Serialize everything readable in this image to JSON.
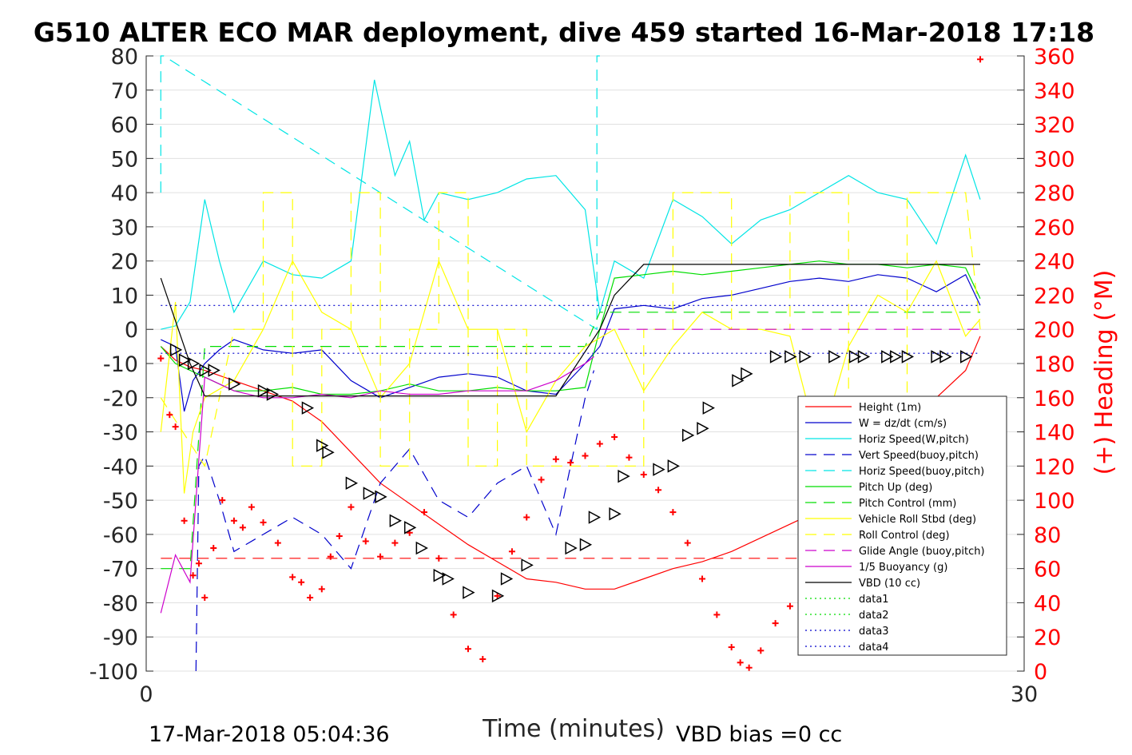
{
  "chart_data": {
    "type": "line",
    "title": "G510 ALTER ECO MAR deployment, dive 459 started 16-Mar-2018 17:18",
    "xlabel": "Time (minutes)",
    "ylabel": "",
    "y2label": "(+) Heading (°M)",
    "xlim": [
      0,
      30
    ],
    "ylim": [
      -100,
      80
    ],
    "y2lim": [
      0,
      360
    ],
    "x_ticks": [
      "0",
      "30"
    ],
    "y_ticks": [
      "80",
      "70",
      "60",
      "50",
      "40",
      "30",
      "20",
      "10",
      "0",
      "-10",
      "-20",
      "-30",
      "-40",
      "-50",
      "-60",
      "-70",
      "-80",
      "-90",
      "-100"
    ],
    "y2_ticks": [
      "360",
      "340",
      "320",
      "300",
      "280",
      "260",
      "240",
      "220",
      "200",
      "180",
      "160",
      "140",
      "120",
      "100",
      "80",
      "60",
      "40",
      "20",
      "0"
    ],
    "grid": true,
    "legend_position": "bottom-right",
    "footer_left": "17-Mar-2018 05:04:36",
    "footer_right": "VBD bias =0 cc",
    "colors": {
      "height": "#ff0000",
      "w": "#0000cc",
      "horiz_speed": "#00e5e5",
      "pitch": "#00dd00",
      "roll": "#ffff00",
      "glide": "#cc00cc",
      "vbd": "#000000",
      "heading": "#ff0000"
    },
    "series": [
      {
        "name": "Height (1m)",
        "style": "solid",
        "color": "#ff0000",
        "x": [
          0.5,
          1,
          1.5,
          2,
          3,
          4,
          5,
          6,
          7,
          8,
          9,
          10,
          11,
          12,
          13,
          14,
          15,
          16,
          17,
          18,
          19,
          20,
          21,
          22,
          23,
          24,
          25,
          26,
          27,
          28,
          28.5
        ],
        "y": [
          -5,
          -9,
          -11,
          -12,
          -15,
          -18,
          -21,
          -27,
          -36,
          -45,
          -51,
          -57,
          -63,
          -68,
          -73,
          -74,
          -76,
          -76,
          -73,
          -70,
          -68,
          -65,
          -61,
          -57,
          -53,
          -45,
          -37,
          -28,
          -20,
          -12,
          -2
        ]
      },
      {
        "name": "W = dz/dt (cm/s)",
        "style": "solid",
        "color": "#0000cc",
        "x": [
          0.5,
          1,
          1.3,
          1.6,
          2,
          2.5,
          3,
          4,
          5,
          6,
          7,
          8,
          9,
          10,
          11,
          12,
          13,
          14,
          15,
          15.5,
          16,
          17,
          18,
          19,
          20,
          21,
          22,
          23,
          24,
          25,
          26,
          27,
          28,
          28.5
        ],
        "y": [
          -3,
          -5,
          -24,
          -15,
          -10,
          -6,
          -3,
          -6,
          -7,
          -6,
          -15,
          -20,
          -17,
          -14,
          -13,
          -14,
          -18,
          -19,
          -10,
          -5,
          6,
          7,
          6,
          9,
          10,
          12,
          14,
          15,
          14,
          16,
          15,
          11,
          16,
          7
        ]
      },
      {
        "name": "Horiz Speed(W,pitch)",
        "style": "solid",
        "color": "#00e5e5",
        "x": [
          0.5,
          1,
          1.5,
          2,
          2.5,
          3,
          4,
          5,
          6,
          7,
          7.8,
          8.5,
          9,
          9.5,
          10,
          11,
          12,
          13,
          14,
          15,
          15.5,
          16,
          17,
          18,
          19,
          20,
          21,
          22,
          23,
          24,
          25,
          26,
          27,
          28,
          28.5
        ],
        "y": [
          0,
          1,
          8,
          38,
          20,
          5,
          20,
          16,
          15,
          20,
          73,
          45,
          55,
          32,
          40,
          38,
          40,
          44,
          45,
          35,
          5,
          20,
          15,
          38,
          33,
          25,
          32,
          35,
          40,
          45,
          40,
          38,
          25,
          51,
          38
        ]
      },
      {
        "name": "Vert Speed(buoy,pitch)",
        "style": "dashed",
        "color": "#0000cc",
        "x": [
          1.7,
          1.8,
          2,
          2.5,
          3,
          4,
          5,
          6,
          7,
          8,
          9,
          10,
          11,
          12,
          13,
          14,
          15,
          15.3
        ],
        "y": [
          -100,
          -40,
          -37,
          -50,
          -65,
          -60,
          -55,
          -60,
          -70,
          -45,
          -35,
          -50,
          -55,
          -45,
          -40,
          -60,
          -20,
          -12
        ]
      },
      {
        "name": "Horiz Speed(buoy,pitch)",
        "style": "dashed",
        "color": "#00e5e5",
        "x": [
          0.5,
          0.5,
          0.6,
          15.4,
          15.4,
          15.5
        ],
        "y": [
          40,
          80,
          80,
          0,
          80,
          80
        ]
      },
      {
        "name": "Pitch Up (deg)",
        "style": "solid",
        "color": "#00dd00",
        "x": [
          0.5,
          1,
          2,
          3,
          4,
          5,
          6,
          7,
          8,
          9,
          10,
          11,
          12,
          13,
          14,
          15,
          15.5,
          16,
          17,
          18,
          19,
          20,
          21,
          22,
          23,
          24,
          25,
          26,
          27,
          28,
          28.5
        ],
        "y": [
          -5,
          -10,
          -14,
          -18,
          -18,
          -17,
          -19,
          -19,
          -18,
          -16,
          -18,
          -18,
          -17,
          -18,
          -18,
          -17,
          0,
          15,
          16,
          17,
          16,
          17,
          18,
          19,
          20,
          19,
          19,
          18,
          19,
          18,
          9
        ]
      },
      {
        "name": "Pitch Control (mm)",
        "style": "dashed",
        "color": "#00dd00",
        "x": [
          0.5,
          1.5,
          2,
          15,
          15.5,
          28.5
        ],
        "y": [
          -70,
          -70,
          -5,
          -5,
          5,
          5
        ]
      },
      {
        "name": "Vehicle Roll Stbd (deg)",
        "style": "solid",
        "color": "#ffff00",
        "x": [
          0.5,
          1,
          1.3,
          1.6,
          2,
          3,
          4,
          5,
          6,
          7,
          8,
          9,
          10,
          11,
          12,
          13,
          14,
          15,
          16,
          17,
          18,
          19,
          20,
          21,
          22,
          23,
          24,
          25,
          26,
          27,
          28,
          28.5
        ],
        "y": [
          -30,
          8,
          -48,
          -30,
          -20,
          -15,
          0,
          20,
          5,
          0,
          -20,
          -10,
          20,
          0,
          0,
          -30,
          -15,
          -5,
          0,
          -18,
          -5,
          5,
          0,
          0,
          -2,
          -35,
          -5,
          10,
          5,
          20,
          -2,
          3
        ]
      },
      {
        "name": "Roll Control (deg)",
        "style": "dashed",
        "color": "#ffff00",
        "x": [
          0.5,
          2,
          3,
          4,
          4,
          5,
          5,
          6,
          6,
          7,
          7,
          8,
          8,
          9,
          9,
          10,
          10,
          11,
          11,
          12,
          12,
          13,
          13,
          17,
          17,
          18,
          18,
          20,
          20,
          22,
          22,
          24,
          24,
          26,
          26,
          28,
          28.5
        ],
        "y": [
          -20,
          -40,
          0,
          0,
          40,
          40,
          -40,
          -40,
          0,
          0,
          40,
          40,
          -40,
          -40,
          0,
          0,
          40,
          40,
          -40,
          -40,
          0,
          0,
          -40,
          -40,
          0,
          0,
          40,
          40,
          0,
          0,
          40,
          40,
          -40,
          -40,
          40,
          40,
          0
        ]
      },
      {
        "name": "Glide Angle (buoy,pitch)",
        "style": "dashed",
        "color": "#cc00cc",
        "x": [
          15.5,
          28.5
        ],
        "y": [
          0,
          0
        ]
      },
      {
        "name": "1/5 Buoyancy (g)",
        "style": "solid",
        "color": "#cc00cc",
        "x": [
          0.5,
          1,
          1.5,
          2,
          3,
          4,
          5,
          6,
          7,
          8,
          9,
          10,
          11,
          12,
          13,
          14,
          15,
          15.3
        ],
        "y": [
          -83,
          -66,
          -74,
          -14,
          -18,
          -20,
          -20,
          -19,
          -20,
          -18,
          -19,
          -19,
          -18,
          -18,
          -18,
          -15,
          -10,
          -8
        ]
      },
      {
        "name": "VBD (10 cc)",
        "style": "solid",
        "color": "#000000",
        "x": [
          0.5,
          1.5,
          2,
          13,
          14,
          15.5,
          16,
          17,
          18,
          20,
          22,
          24,
          26,
          28.5
        ],
        "y": [
          15,
          -10,
          -19.5,
          -19.5,
          -19.5,
          0,
          10,
          19,
          19,
          19,
          19,
          19,
          19,
          19
        ]
      },
      {
        "name": "data1",
        "style": "dotted",
        "color": "#00dd00",
        "x": [],
        "y": []
      },
      {
        "name": "data2",
        "style": "dotted",
        "color": "#00dd00",
        "x": [],
        "y": []
      },
      {
        "name": "data3",
        "style": "dotted",
        "color": "#0000cc",
        "x": [
          0.5,
          28.5
        ],
        "y": [
          7,
          7
        ]
      },
      {
        "name": "data4",
        "style": "dotted",
        "color": "#0000cc",
        "x": [
          0.5,
          28.5
        ],
        "y": [
          -7,
          -7
        ]
      }
    ],
    "heading_line": {
      "x": [
        0.5,
        28.5
      ],
      "y": [
        -67,
        -67
      ],
      "style": "dashed",
      "color": "#ff0000"
    },
    "heading_points": {
      "color": "#ff0000",
      "marker": "+",
      "x": [
        0.5,
        0.8,
        1,
        1.3,
        1.6,
        1.8,
        2,
        2.3,
        2.6,
        3,
        3.3,
        3.6,
        4,
        4.5,
        5,
        5.3,
        5.6,
        6,
        6.3,
        6.6,
        7,
        7.5,
        8,
        8.5,
        9,
        9.5,
        10,
        10.5,
        11,
        11.5,
        12,
        12.5,
        13,
        13.5,
        14,
        14.5,
        15,
        15.5,
        16,
        16.5,
        17,
        17.5,
        18,
        18.5,
        19,
        19.5,
        20,
        20.3,
        20.6,
        21,
        21.5,
        22,
        22.5,
        23,
        23.5,
        24,
        24.5,
        25,
        25.5,
        26,
        26.5,
        27,
        27.5,
        28,
        28.5
      ],
      "y": [
        183,
        150,
        143,
        88,
        56,
        63,
        43,
        72,
        100,
        88,
        84,
        96,
        87,
        75,
        55,
        52,
        43,
        48,
        67,
        79,
        96,
        76,
        67,
        75,
        81,
        93,
        66,
        33,
        13,
        7,
        44,
        70,
        90,
        112,
        124,
        122,
        126,
        133,
        137,
        125,
        115,
        106,
        93,
        75,
        54,
        33,
        14,
        5,
        2,
        12,
        28,
        38,
        60,
        73,
        80,
        86,
        81,
        80,
        80,
        56,
        48,
        44,
        30,
        21,
        358
      ]
    },
    "markers": {
      "marker": "triangle",
      "color": "#000000",
      "x": [
        1,
        1.3,
        1.6,
        2,
        2.3,
        3,
        4,
        4.3,
        5.5,
        6,
        6.2,
        7,
        7.6,
        8,
        8.5,
        9,
        9.4,
        10,
        10.3,
        11,
        12,
        12.3,
        13,
        14.5,
        15,
        15.3,
        16,
        16.3,
        17.5,
        18,
        18.5,
        19,
        19.2,
        20.2,
        20.5,
        21.5,
        22,
        22.5,
        23.5,
        24.2,
        24.5,
        25.3,
        25.6,
        26,
        27,
        27.3,
        28
      ],
      "y": [
        -6,
        -9,
        -10,
        -12,
        -12,
        -16,
        -18,
        -19,
        -23,
        -34,
        -36,
        -45,
        -48,
        -49,
        -56,
        -58,
        -64,
        -72,
        -73,
        -77,
        -78,
        -73,
        -69,
        -64,
        -63,
        -55,
        -54,
        -43,
        -41,
        -40,
        -31,
        -29,
        -23,
        -15,
        -13,
        -8,
        -8,
        -8,
        -8,
        -8,
        -8,
        -8,
        -8,
        -8,
        -8,
        -8,
        -8
      ]
    }
  }
}
